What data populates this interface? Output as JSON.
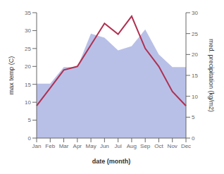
{
  "chart_data": {
    "type": "line",
    "xlabel": "date (month)",
    "ylabel": "max temp (C)",
    "y2label": "med. precipitation (kg/m2)",
    "categories": [
      "Jan",
      "Feb",
      "Mar",
      "Apr",
      "May",
      "Jun",
      "Jul",
      "Aug",
      "Sep",
      "Oct",
      "Nov",
      "Dec"
    ],
    "series": [
      {
        "type": "area",
        "axis": "y2",
        "color": "#b8c0e8",
        "values": [
          13,
          13,
          17,
          17,
          25,
          24,
          21,
          22,
          26,
          20,
          17,
          17
        ]
      },
      {
        "type": "line",
        "color": "#b03050",
        "values": [
          9,
          14,
          19,
          20,
          26,
          32,
          29,
          34,
          25,
          20,
          13,
          9
        ]
      }
    ],
    "ylim": [
      0,
      35
    ],
    "yticks": [
      0,
      5,
      10,
      15,
      20,
      25,
      30,
      35
    ],
    "y2lim": [
      0,
      30
    ],
    "y2ticks": [
      0,
      5,
      10,
      15,
      20,
      25,
      30
    ],
    "grid": false
  }
}
